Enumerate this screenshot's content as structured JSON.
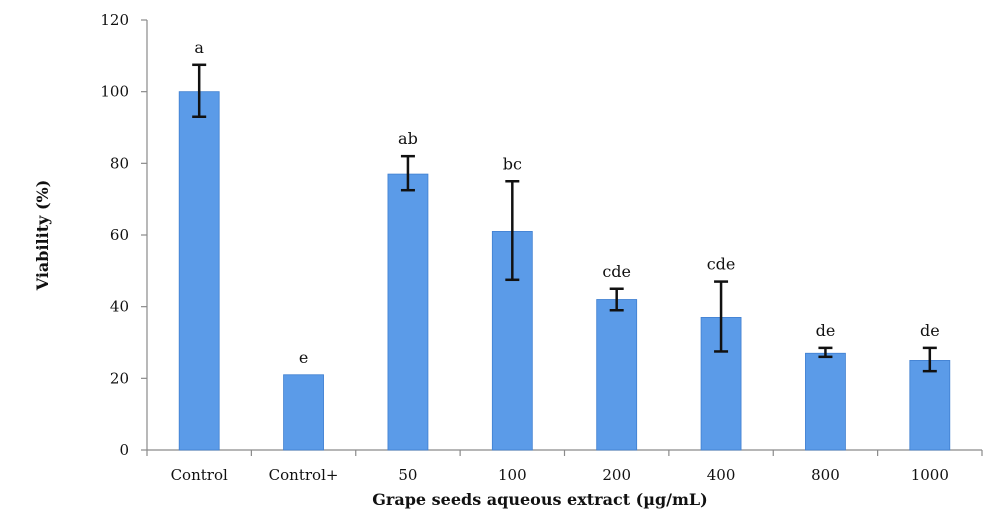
{
  "chart_data": {
    "type": "bar",
    "title": "",
    "xlabel": "Grape seeds aqueous extract (µg/mL)",
    "ylabel": "Viability (%)",
    "ylim": [
      0,
      120
    ],
    "yticks": [
      0,
      20,
      40,
      60,
      80,
      100,
      120
    ],
    "grid": false,
    "categories": [
      "Control",
      "Control+",
      "50",
      "100",
      "200",
      "400",
      "800",
      "1000"
    ],
    "values": [
      100,
      21,
      77,
      61,
      42,
      37,
      27,
      25
    ],
    "error_low": [
      93,
      21,
      72.5,
      47.5,
      39,
      27.5,
      26,
      22
    ],
    "error_high": [
      107.5,
      21,
      82,
      75,
      45,
      47,
      28.5,
      28.5
    ],
    "significance_labels": [
      "a",
      "e",
      "ab",
      "bc",
      "cde",
      "cde",
      "de",
      "de"
    ],
    "colors": {
      "bar": "#5b9be8",
      "bar_stroke": "#3f7fd0",
      "axis": "#8a8a8a",
      "error": "#111111"
    }
  }
}
